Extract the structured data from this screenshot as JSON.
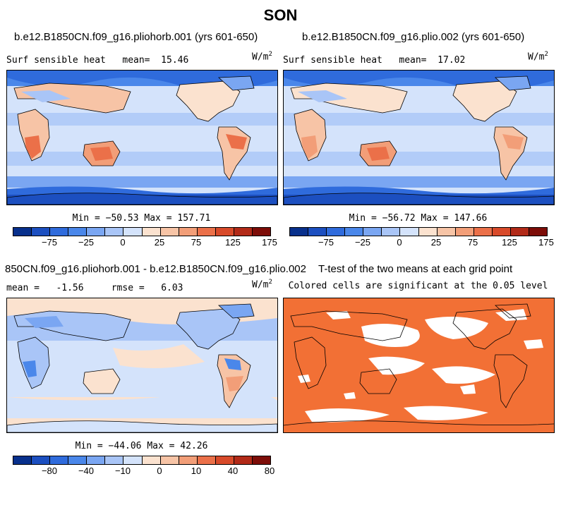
{
  "main_title": "SON",
  "panels": [
    {
      "title": "b.e12.B1850CN.f09_g16.pliohorb.001 (yrs 601-650)",
      "field_label": "Surf sensible heat",
      "mean_label": "mean=",
      "mean_value": "15.46",
      "units_base": "W/m",
      "units_exp": "2",
      "stats": "Min = −50.53 Max = 157.71",
      "colorbar_labels": [
        "−75",
        "−25",
        "0",
        "25",
        "75",
        "125",
        "175"
      ]
    },
    {
      "title": "b.e12.B1850CN.f09_g16.plio.002 (yrs 601-650)",
      "field_label": "Surf sensible heat",
      "mean_label": "mean=",
      "mean_value": "17.02",
      "units_base": "W/m",
      "units_exp": "2",
      "stats": "Min = −56.72 Max = 147.66",
      "colorbar_labels": [
        "−75",
        "−25",
        "0",
        "25",
        "75",
        "125",
        "175"
      ]
    },
    {
      "title": "850CN.f09_g16.pliohorb.001 - b.e12.B1850CN.f09_g16.plio.002",
      "mean_label": "mean =",
      "mean_value": "-1.56",
      "rmse_label": "rmse =",
      "rmse_value": "6.03",
      "units_base": "W/m",
      "units_exp": "2",
      "stats": "Min = −44.06 Max = 42.26",
      "colorbar_labels": [
        "−80",
        "−40",
        "−10",
        "0",
        "10",
        "40",
        "80"
      ]
    },
    {
      "title": "T-test of the two means at each grid point",
      "subtitle": "Colored cells are significant at the 0.05 level"
    }
  ],
  "colors": {
    "scale_14": [
      "#08308c",
      "#1c4fc0",
      "#2f6bdc",
      "#4a87ea",
      "#7aa6f2",
      "#a9c5f7",
      "#d4e3fb",
      "#fbe2cf",
      "#f7c4a6",
      "#f29e78",
      "#eb7049",
      "#d84a2a",
      "#b22a18",
      "#7d0d08"
    ],
    "scale_diff": [
      "#08308c",
      "#1c4fc0",
      "#2f6bdc",
      "#4a87ea",
      "#7aa6f2",
      "#a9c5f7",
      "#d4e3fb",
      "#fbe2cf",
      "#f7c4a6",
      "#f29e78",
      "#eb7049",
      "#d84a2a",
      "#b22a18",
      "#7d0d08"
    ],
    "ttest_fill": "#f27035"
  }
}
